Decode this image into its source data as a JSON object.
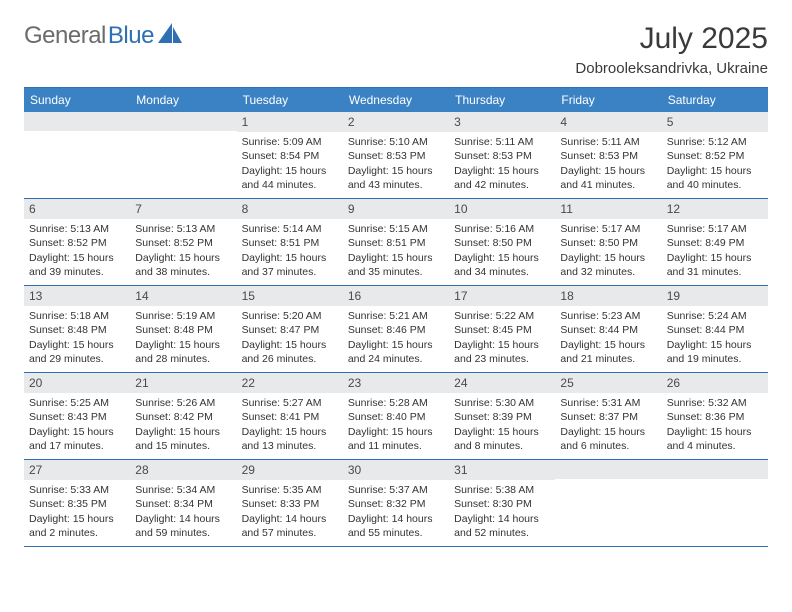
{
  "brand": {
    "text_gray": "General",
    "text_blue": "Blue"
  },
  "title": "July 2025",
  "location": "Dobrooleksandrivka, Ukraine",
  "colors": {
    "header_bg": "#3a82c4",
    "rule": "#2f6fb3",
    "daynum_bg": "#e7e9eb",
    "text": "#333333",
    "brand_gray": "#6b6b6b",
    "brand_blue": "#2f6fb3",
    "background": "#ffffff"
  },
  "weekday_labels": [
    "Sunday",
    "Monday",
    "Tuesday",
    "Wednesday",
    "Thursday",
    "Friday",
    "Saturday"
  ],
  "weeks": [
    [
      {
        "blank": true
      },
      {
        "blank": true
      },
      {
        "day": "1",
        "sunrise": "Sunrise: 5:09 AM",
        "sunset": "Sunset: 8:54 PM",
        "daylight": "Daylight: 15 hours and 44 minutes."
      },
      {
        "day": "2",
        "sunrise": "Sunrise: 5:10 AM",
        "sunset": "Sunset: 8:53 PM",
        "daylight": "Daylight: 15 hours and 43 minutes."
      },
      {
        "day": "3",
        "sunrise": "Sunrise: 5:11 AM",
        "sunset": "Sunset: 8:53 PM",
        "daylight": "Daylight: 15 hours and 42 minutes."
      },
      {
        "day": "4",
        "sunrise": "Sunrise: 5:11 AM",
        "sunset": "Sunset: 8:53 PM",
        "daylight": "Daylight: 15 hours and 41 minutes."
      },
      {
        "day": "5",
        "sunrise": "Sunrise: 5:12 AM",
        "sunset": "Sunset: 8:52 PM",
        "daylight": "Daylight: 15 hours and 40 minutes."
      }
    ],
    [
      {
        "day": "6",
        "sunrise": "Sunrise: 5:13 AM",
        "sunset": "Sunset: 8:52 PM",
        "daylight": "Daylight: 15 hours and 39 minutes."
      },
      {
        "day": "7",
        "sunrise": "Sunrise: 5:13 AM",
        "sunset": "Sunset: 8:52 PM",
        "daylight": "Daylight: 15 hours and 38 minutes."
      },
      {
        "day": "8",
        "sunrise": "Sunrise: 5:14 AM",
        "sunset": "Sunset: 8:51 PM",
        "daylight": "Daylight: 15 hours and 37 minutes."
      },
      {
        "day": "9",
        "sunrise": "Sunrise: 5:15 AM",
        "sunset": "Sunset: 8:51 PM",
        "daylight": "Daylight: 15 hours and 35 minutes."
      },
      {
        "day": "10",
        "sunrise": "Sunrise: 5:16 AM",
        "sunset": "Sunset: 8:50 PM",
        "daylight": "Daylight: 15 hours and 34 minutes."
      },
      {
        "day": "11",
        "sunrise": "Sunrise: 5:17 AM",
        "sunset": "Sunset: 8:50 PM",
        "daylight": "Daylight: 15 hours and 32 minutes."
      },
      {
        "day": "12",
        "sunrise": "Sunrise: 5:17 AM",
        "sunset": "Sunset: 8:49 PM",
        "daylight": "Daylight: 15 hours and 31 minutes."
      }
    ],
    [
      {
        "day": "13",
        "sunrise": "Sunrise: 5:18 AM",
        "sunset": "Sunset: 8:48 PM",
        "daylight": "Daylight: 15 hours and 29 minutes."
      },
      {
        "day": "14",
        "sunrise": "Sunrise: 5:19 AM",
        "sunset": "Sunset: 8:48 PM",
        "daylight": "Daylight: 15 hours and 28 minutes."
      },
      {
        "day": "15",
        "sunrise": "Sunrise: 5:20 AM",
        "sunset": "Sunset: 8:47 PM",
        "daylight": "Daylight: 15 hours and 26 minutes."
      },
      {
        "day": "16",
        "sunrise": "Sunrise: 5:21 AM",
        "sunset": "Sunset: 8:46 PM",
        "daylight": "Daylight: 15 hours and 24 minutes."
      },
      {
        "day": "17",
        "sunrise": "Sunrise: 5:22 AM",
        "sunset": "Sunset: 8:45 PM",
        "daylight": "Daylight: 15 hours and 23 minutes."
      },
      {
        "day": "18",
        "sunrise": "Sunrise: 5:23 AM",
        "sunset": "Sunset: 8:44 PM",
        "daylight": "Daylight: 15 hours and 21 minutes."
      },
      {
        "day": "19",
        "sunrise": "Sunrise: 5:24 AM",
        "sunset": "Sunset: 8:44 PM",
        "daylight": "Daylight: 15 hours and 19 minutes."
      }
    ],
    [
      {
        "day": "20",
        "sunrise": "Sunrise: 5:25 AM",
        "sunset": "Sunset: 8:43 PM",
        "daylight": "Daylight: 15 hours and 17 minutes."
      },
      {
        "day": "21",
        "sunrise": "Sunrise: 5:26 AM",
        "sunset": "Sunset: 8:42 PM",
        "daylight": "Daylight: 15 hours and 15 minutes."
      },
      {
        "day": "22",
        "sunrise": "Sunrise: 5:27 AM",
        "sunset": "Sunset: 8:41 PM",
        "daylight": "Daylight: 15 hours and 13 minutes."
      },
      {
        "day": "23",
        "sunrise": "Sunrise: 5:28 AM",
        "sunset": "Sunset: 8:40 PM",
        "daylight": "Daylight: 15 hours and 11 minutes."
      },
      {
        "day": "24",
        "sunrise": "Sunrise: 5:30 AM",
        "sunset": "Sunset: 8:39 PM",
        "daylight": "Daylight: 15 hours and 8 minutes."
      },
      {
        "day": "25",
        "sunrise": "Sunrise: 5:31 AM",
        "sunset": "Sunset: 8:37 PM",
        "daylight": "Daylight: 15 hours and 6 minutes."
      },
      {
        "day": "26",
        "sunrise": "Sunrise: 5:32 AM",
        "sunset": "Sunset: 8:36 PM",
        "daylight": "Daylight: 15 hours and 4 minutes."
      }
    ],
    [
      {
        "day": "27",
        "sunrise": "Sunrise: 5:33 AM",
        "sunset": "Sunset: 8:35 PM",
        "daylight": "Daylight: 15 hours and 2 minutes."
      },
      {
        "day": "28",
        "sunrise": "Sunrise: 5:34 AM",
        "sunset": "Sunset: 8:34 PM",
        "daylight": "Daylight: 14 hours and 59 minutes."
      },
      {
        "day": "29",
        "sunrise": "Sunrise: 5:35 AM",
        "sunset": "Sunset: 8:33 PM",
        "daylight": "Daylight: 14 hours and 57 minutes."
      },
      {
        "day": "30",
        "sunrise": "Sunrise: 5:37 AM",
        "sunset": "Sunset: 8:32 PM",
        "daylight": "Daylight: 14 hours and 55 minutes."
      },
      {
        "day": "31",
        "sunrise": "Sunrise: 5:38 AM",
        "sunset": "Sunset: 8:30 PM",
        "daylight": "Daylight: 14 hours and 52 minutes."
      },
      {
        "blank": true
      },
      {
        "blank": true
      }
    ]
  ]
}
